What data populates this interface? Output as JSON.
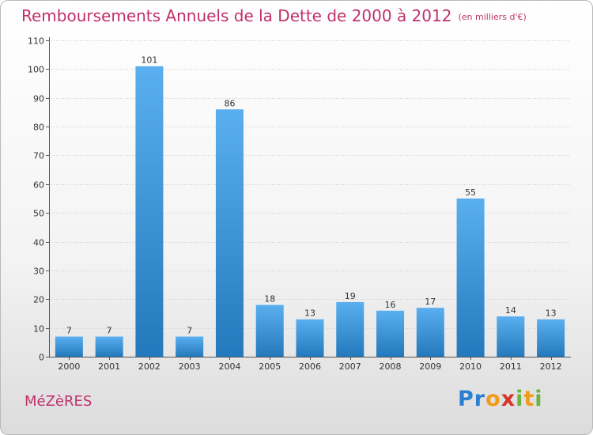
{
  "header": {
    "title": "Remboursements Annuels de la Dette de 2000 à 2012",
    "subtitle": "(en milliers d'€)"
  },
  "footer": {
    "commune": "MéZèRES",
    "logo_letters": [
      {
        "char": "P",
        "color": "#2b7fd0"
      },
      {
        "char": "r",
        "color": "#2b7fd0"
      },
      {
        "char": "o",
        "color": "#f29a1a"
      },
      {
        "char": "x",
        "color": "#d8342b"
      },
      {
        "char": "i",
        "color": "#6cb33f"
      },
      {
        "char": "t",
        "color": "#f29a1a"
      },
      {
        "char": "i",
        "color": "#6cb33f"
      }
    ]
  },
  "colors": {
    "title": "#c0306a",
    "bar_top": "#5aaff0",
    "bar_bottom": "#2379bb",
    "axis": "#555555",
    "grid": "#cccccc"
  },
  "chart_data": {
    "type": "bar",
    "title": "Remboursements Annuels de la Dette de 2000 à 2012",
    "subtitle": "(en milliers d'€)",
    "xlabel": "",
    "ylabel": "",
    "ylim": [
      0,
      110
    ],
    "yticks": [
      0,
      10,
      20,
      30,
      40,
      50,
      60,
      70,
      80,
      90,
      100,
      110
    ],
    "grid": true,
    "legend": "none",
    "categories": [
      "2000",
      "2001",
      "2002",
      "2003",
      "2004",
      "2005",
      "2006",
      "2007",
      "2008",
      "2009",
      "2010",
      "2011",
      "2012"
    ],
    "values": [
      7,
      7,
      101,
      7,
      86,
      18,
      13,
      19,
      16,
      17,
      55,
      14,
      13
    ]
  }
}
